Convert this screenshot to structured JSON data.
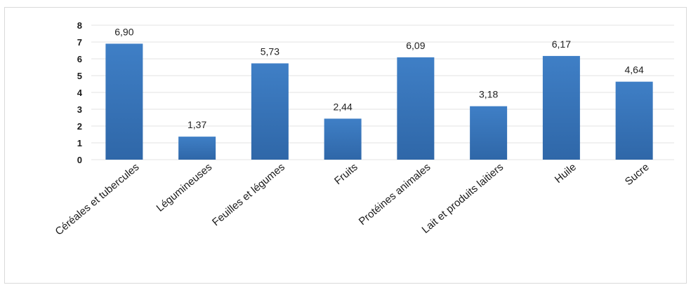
{
  "chart_data": {
    "type": "bar",
    "categories": [
      "Céréales et tubercules",
      "Légumineuses",
      "Feuilles et légumes",
      "Fruits",
      "Protéines animales",
      "Lait et produits laitiers",
      "Huile",
      "Sucre"
    ],
    "values": [
      6.9,
      1.37,
      5.73,
      2.44,
      6.09,
      3.18,
      6.17,
      4.64
    ],
    "data_labels": [
      "6,90",
      "1,37",
      "5,73",
      "2,44",
      "6,09",
      "3,18",
      "6,17",
      "4,64"
    ],
    "yticks": [
      "0",
      "1",
      "2",
      "3",
      "4",
      "5",
      "6",
      "7",
      "8"
    ],
    "ylim": [
      0,
      8
    ],
    "grid": true,
    "legend": "none",
    "bar_color": "#3f7fc6",
    "bar_color_dark": "#2f67a8"
  }
}
